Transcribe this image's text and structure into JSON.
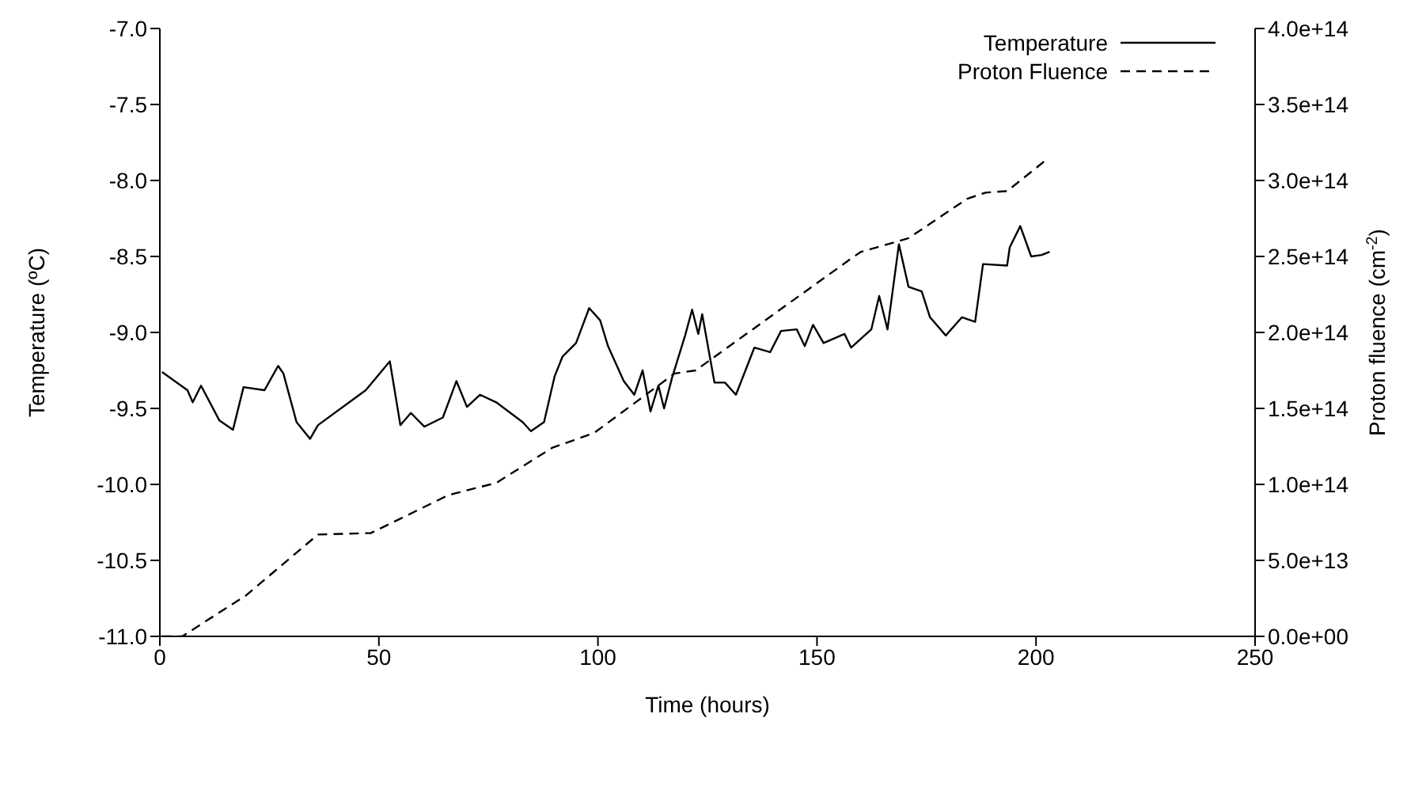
{
  "chart_data": {
    "type": "line",
    "xlabel": "Time (hours)",
    "ylabel": "Temperature (ºC)",
    "y2label": "Proton fluence (cm$^{-2}$)",
    "xlim": [
      0,
      250
    ],
    "xticks": [
      0,
      50,
      100,
      150,
      200,
      250
    ],
    "ylim": [
      -11,
      -7
    ],
    "yticks": [
      {
        "value": -11,
        "label": "-11.0"
      },
      {
        "value": -10.5,
        "label": "-10.5"
      },
      {
        "value": -10,
        "label": "-10.0"
      },
      {
        "value": -9.5,
        "label": "-9.5"
      },
      {
        "value": -9,
        "label": "-9.0"
      },
      {
        "value": -8.5,
        "label": "-8.5"
      },
      {
        "value": -8,
        "label": "-8.0"
      },
      {
        "value": -7.5,
        "label": "-7.5"
      },
      {
        "value": -7,
        "label": "-7.0"
      }
    ],
    "y2lim": [
      0,
      400000000000000.0
    ],
    "y2ticks": [
      {
        "value": 0,
        "label": "0.0e+00"
      },
      {
        "value": 50000000000000.0,
        "label": "5.0e+13"
      },
      {
        "value": 100000000000000.0,
        "label": "1.0e+14"
      },
      {
        "value": 150000000000000.0,
        "label": "1.5e+14"
      },
      {
        "value": 200000000000000.0,
        "label": "2.0e+14"
      },
      {
        "value": 250000000000000.0,
        "label": "2.5e+14"
      },
      {
        "value": 300000000000000.0,
        "label": "3.0e+14"
      },
      {
        "value": 350000000000000.0,
        "label": "3.5e+14"
      },
      {
        "value": 400000000000000.0,
        "label": "4.0e+14"
      }
    ],
    "grid": false,
    "legend": "top right",
    "marker": "none",
    "series": [
      {
        "name": "Temperature",
        "color": "#000000",
        "line_style": "solid",
        "x": [
          0.5,
          6.3,
          7.5,
          9.4,
          13.6,
          16.7,
          19.1,
          23.9,
          27.0,
          28.2,
          31.2,
          34.3,
          36.1,
          47.0,
          52.5,
          54.9,
          57.3,
          60.4,
          64.6,
          67.7,
          70.1,
          73.1,
          76.8,
          82.8,
          84.7,
          87.7,
          90.1,
          91.9,
          95.0,
          98.0,
          100.5,
          102.3,
          105.9,
          108.3,
          110.2,
          112.0,
          113.8,
          115.1,
          116.9,
          119.9,
          121.5,
          122.9,
          123.8,
          126.6,
          129.0,
          131.5,
          135.7,
          139.3,
          141.8,
          145.4,
          147.2,
          149.1,
          151.5,
          156.3,
          157.8,
          162.4,
          164.2,
          166.1,
          168.7,
          170.9,
          173.9,
          175.8,
          179.4,
          183.1,
          186.1,
          187.9,
          193.4,
          194.0,
          196.4,
          198.9,
          201.3,
          203.1
        ],
        "values": [
          -9.26,
          -9.38,
          -9.46,
          -9.35,
          -9.58,
          -9.64,
          -9.36,
          -9.38,
          -9.22,
          -9.27,
          -9.59,
          -9.7,
          -9.61,
          -9.38,
          -9.19,
          -9.61,
          -9.53,
          -9.62,
          -9.56,
          -9.32,
          -9.49,
          -9.41,
          -9.46,
          -9.59,
          -9.65,
          -9.59,
          -9.29,
          -9.16,
          -9.07,
          -8.84,
          -8.92,
          -9.09,
          -9.32,
          -9.41,
          -9.25,
          -9.52,
          -9.35,
          -9.5,
          -9.3,
          -9.02,
          -8.85,
          -9.01,
          -8.88,
          -9.33,
          -9.33,
          -9.41,
          -9.1,
          -9.13,
          -8.99,
          -8.98,
          -9.09,
          -8.95,
          -9.07,
          -9.01,
          -9.1,
          -8.98,
          -8.76,
          -8.98,
          -8.42,
          -8.7,
          -8.73,
          -8.9,
          -9.02,
          -8.9,
          -8.93,
          -8.55,
          -8.56,
          -8.44,
          -8.3,
          -8.5,
          -8.49,
          -8.47
        ]
      },
      {
        "name": "Proton Fluence",
        "color": "#000000",
        "line_style": "dashed",
        "axis": "y2",
        "x": [
          0.5,
          5.1,
          19.7,
          36.1,
          48.2,
          65.9,
          76.8,
          89.5,
          99.2,
          117.5,
          122.3,
          157.5,
          160,
          170.9,
          184.3,
          188.5,
          193.4,
          202.5
        ],
        "values": [
          0,
          0,
          27000000000000.0,
          67000000000000.0,
          68000000000000.0,
          93000000000000.0,
          101000000000000.0,
          124000000000000.0,
          134000000000000.0,
          173000000000000.0,
          175000000000000.0,
          248000000000000.0,
          253000000000000.0,
          262000000000000.0,
          288000000000000.0,
          292000000000000.0,
          293000000000000.0,
          314000000000000.0
        ]
      }
    ]
  }
}
